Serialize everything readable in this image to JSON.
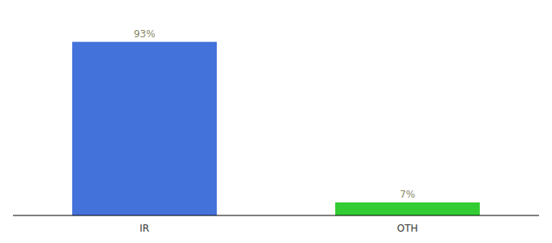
{
  "chart_data": {
    "type": "bar",
    "categories": [
      "IR",
      "OTH"
    ],
    "values": [
      93,
      7
    ],
    "value_labels": [
      "93%",
      "7%"
    ],
    "colors": [
      "#4472db",
      "#33cc33"
    ],
    "ylim": [
      0,
      105
    ],
    "data_labels": true,
    "tick_labels": "x",
    "grid": false
  }
}
